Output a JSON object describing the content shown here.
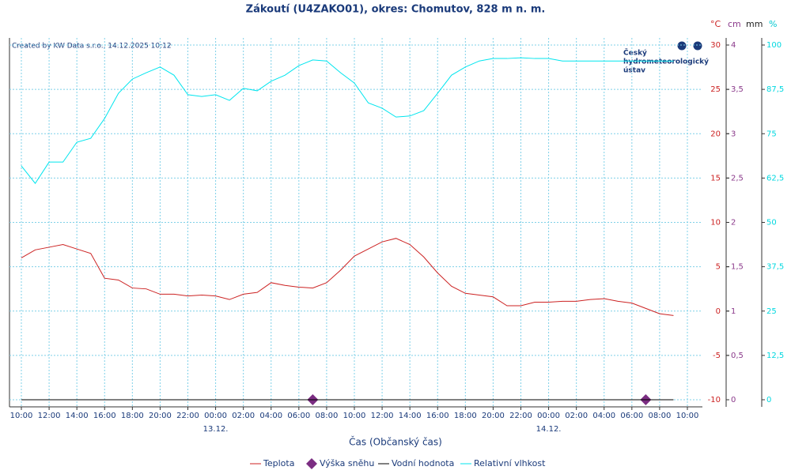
{
  "chart_data": {
    "type": "line",
    "title": "Zákoutí (U4ZAKO01), okres: Chomutov, 828 m n. m.",
    "subtitle": "Created by KW Data s.r.o., 14.12.2025 10:12",
    "logo": [
      "Český",
      "hydrometeorologický",
      "ústav"
    ],
    "xlabel": "Čas (Občanský čas)",
    "ylabel": "°C",
    "y2labels": [
      "cm",
      "mm"
    ],
    "y3label": "%",
    "xlim": [
      0,
      48
    ],
    "xticks": [
      {
        "value": 0,
        "label": "10:00"
      },
      {
        "value": 2,
        "label": "12:00"
      },
      {
        "value": 4,
        "label": "14:00"
      },
      {
        "value": 6,
        "label": "16:00"
      },
      {
        "value": 8,
        "label": "18:00"
      },
      {
        "value": 10,
        "label": "20:00"
      },
      {
        "value": 12,
        "label": "22:00"
      },
      {
        "value": 14,
        "label": "00:00"
      },
      {
        "value": 16,
        "label": "02:00"
      },
      {
        "value": 18,
        "label": "04:00"
      },
      {
        "value": 20,
        "label": "06:00"
      },
      {
        "value": 22,
        "label": "08:00"
      },
      {
        "value": 24,
        "label": "10:00"
      },
      {
        "value": 26,
        "label": "12:00"
      },
      {
        "value": 28,
        "label": "14:00"
      },
      {
        "value": 30,
        "label": "16:00"
      },
      {
        "value": 32,
        "label": "18:00"
      },
      {
        "value": 34,
        "label": "20:00"
      },
      {
        "value": 36,
        "label": "22:00"
      },
      {
        "value": 38,
        "label": "00:00"
      },
      {
        "value": 40,
        "label": "02:00"
      },
      {
        "value": 42,
        "label": "04:00"
      },
      {
        "value": 44,
        "label": "06:00"
      },
      {
        "value": 46,
        "label": "08:00"
      },
      {
        "value": 48,
        "label": "10:00"
      }
    ],
    "date_labels": [
      {
        "value": 14,
        "label": "13.12."
      },
      {
        "value": 38,
        "label": "14.12."
      }
    ],
    "ylim": [
      -10,
      30
    ],
    "yticks": [
      -10,
      -5,
      0,
      5,
      10,
      15,
      20,
      25,
      30
    ],
    "ycolor": "#cc2222",
    "y2lim": [
      0,
      4
    ],
    "y2ticks": [
      0,
      {
        "value": 0.5,
        "label": "0,5"
      },
      1,
      {
        "value": 1.5,
        "label": "1,5"
      },
      2,
      {
        "value": 2.5,
        "label": "2,5"
      },
      3,
      {
        "value": 3.5,
        "label": "3,5"
      },
      4
    ],
    "y2color": "#8b3a8b",
    "y3lim": [
      0,
      100
    ],
    "y3ticks": [
      0,
      {
        "value": 12.5,
        "label": "12,5"
      },
      25,
      {
        "value": 37.5,
        "label": "37,5"
      },
      50,
      {
        "value": 62.5,
        "label": "62,5"
      },
      75,
      {
        "value": 87.5,
        "label": "87,5"
      },
      100
    ],
    "y3color": "#00d8e0",
    "grid": true,
    "series": [
      {
        "name": "Teplota",
        "color": "#cc2222",
        "axis": "y",
        "x": [
          0,
          1,
          2,
          3,
          4,
          5,
          6,
          7,
          8,
          9,
          10,
          11,
          12,
          13,
          14,
          15,
          16,
          17,
          18,
          19,
          20,
          21,
          22,
          23,
          24,
          25,
          26,
          27,
          28,
          29,
          30,
          31,
          32,
          33,
          34,
          35,
          36,
          37,
          38,
          39,
          40,
          41,
          42,
          43,
          44,
          45,
          46,
          47
        ],
        "values": [
          6.0,
          6.9,
          7.2,
          7.5,
          7.0,
          6.5,
          3.7,
          3.5,
          2.6,
          2.5,
          1.9,
          1.9,
          1.7,
          1.8,
          1.7,
          1.3,
          1.9,
          2.1,
          3.2,
          2.9,
          2.7,
          2.6,
          3.2,
          4.6,
          6.2,
          7.0,
          7.8,
          8.2,
          7.5,
          6.1,
          4.3,
          2.8,
          2.0,
          1.8,
          1.6,
          0.6,
          0.6,
          1.0,
          1.0,
          1.1,
          1.1,
          1.3,
          1.4,
          1.1,
          0.9,
          0.3,
          -0.3,
          -0.5
        ]
      },
      {
        "name": "Výška sněhu",
        "color": "#7b2d82",
        "axis": "y2",
        "marker": "diamond",
        "x": [
          21,
          45
        ],
        "values": [
          0,
          0
        ]
      },
      {
        "name": "Vodní hodnota",
        "color": "#000000",
        "axis": "y2",
        "x": [
          0,
          47
        ],
        "values": [
          0,
          0
        ]
      },
      {
        "name": "Relativní vlhkost",
        "color": "#00e5ee",
        "axis": "y3",
        "x": [
          0,
          1,
          2,
          3,
          4,
          5,
          6,
          7,
          8,
          9,
          10,
          11,
          12,
          13,
          14,
          15,
          16,
          17,
          18,
          19,
          20,
          21,
          22,
          23,
          24,
          25,
          26,
          27,
          28,
          29,
          30,
          31,
          32,
          33,
          34,
          35,
          36,
          37,
          38,
          39,
          40,
          41,
          42,
          43,
          44,
          45,
          46,
          47
        ],
        "values": [
          65.9,
          61,
          67,
          67,
          72.6,
          73.7,
          79.3,
          86.4,
          90.4,
          92.2,
          93.8,
          91.5,
          86,
          85.5,
          86,
          84.4,
          87.8,
          87.1,
          89.8,
          91.5,
          94.2,
          95.8,
          95.5,
          92.2,
          89.3,
          83.7,
          82.2,
          79.7,
          80,
          81.5,
          86.4,
          91.5,
          93.8,
          95.5,
          96.2,
          96.2,
          96.4,
          96.2,
          96.2,
          95.5,
          95.5,
          95.5,
          95.5,
          95.5,
          95.5,
          95.5,
          95.5,
          95.5
        ]
      }
    ]
  }
}
